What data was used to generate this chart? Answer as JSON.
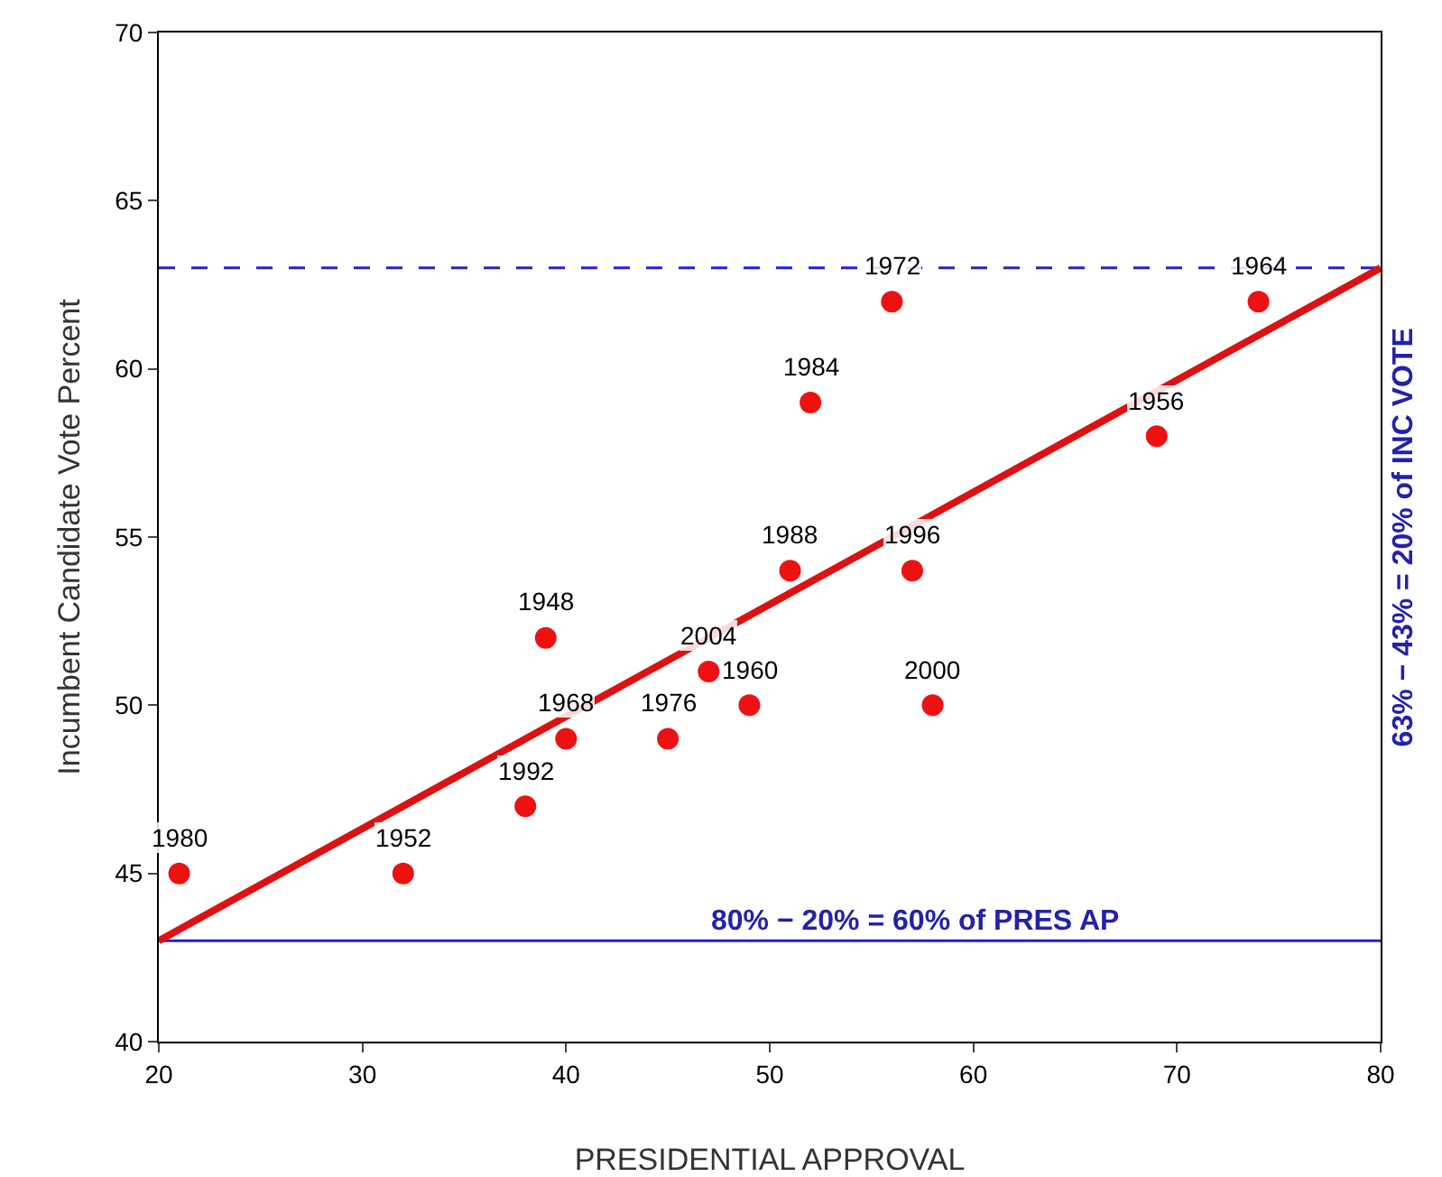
{
  "chart_data": {
    "type": "scatter",
    "xlabel": "PRESIDENTIAL APPROVAL",
    "ylabel": "Incumbent Candidate Vote Percent",
    "series": [
      {
        "color": "#ee1111",
        "marker": "circle",
        "x": [
          21,
          32,
          38,
          39,
          40,
          45,
          47,
          49,
          51,
          52,
          56,
          57,
          58,
          69,
          74
        ],
        "values": [
          45,
          45,
          47,
          52,
          49,
          49,
          51,
          50,
          54,
          59,
          62,
          54,
          50,
          58,
          62
        ]
      },
      {
        "type": "line",
        "color": "#dd1111",
        "marker": "none",
        "x": [
          20,
          80
        ],
        "values": [
          43,
          63
        ]
      }
    ],
    "ref_lines": [
      {
        "axis": "y",
        "value": 63,
        "color": "#2222cc",
        "line_style": "dashed"
      },
      {
        "axis": "y",
        "value": 43,
        "color": "#2222cc",
        "line_style": "solid"
      }
    ],
    "annotations": [
      "80% − 20% = 60% of PRES AP",
      "63% − 43% = 20% of INC VOTE",
      {
        "text": "1980",
        "x": 21,
        "y": 45
      },
      {
        "text": "1952",
        "x": 32,
        "y": 45
      },
      {
        "text": "1992",
        "x": 38,
        "y": 47
      },
      {
        "text": "1948",
        "x": 39,
        "y": 52
      },
      {
        "text": "1968",
        "x": 40,
        "y": 49
      },
      {
        "text": "1976",
        "x": 45,
        "y": 49
      },
      {
        "text": "2004",
        "x": 47,
        "y": 51
      },
      {
        "text": "1960",
        "x": 49,
        "y": 50
      },
      {
        "text": "1988",
        "x": 51,
        "y": 54
      },
      {
        "text": "1984",
        "x": 52,
        "y": 59
      },
      {
        "text": "1972",
        "x": 56,
        "y": 62
      },
      {
        "text": "1996",
        "x": 57,
        "y": 54
      },
      {
        "text": "2000",
        "x": 58,
        "y": 50
      },
      {
        "text": "1956",
        "x": 69,
        "y": 58
      },
      {
        "text": "1964",
        "x": 74,
        "y": 62
      }
    ],
    "xlim": [
      20,
      80
    ],
    "xticks": [
      20,
      30,
      40,
      50,
      60,
      70,
      80
    ],
    "ylim": [
      40,
      70
    ],
    "yticks": [
      40,
      45,
      50,
      55,
      60,
      65,
      70
    ],
    "grid": false
  }
}
